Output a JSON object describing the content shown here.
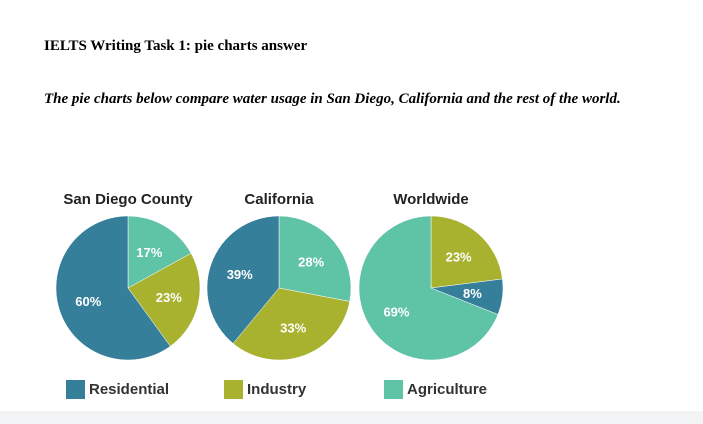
{
  "page": {
    "heading": "IELTS Writing Task 1: pie charts answer",
    "prompt": "The pie charts below compare water usage in San Diego, California and the rest of the world."
  },
  "colors": {
    "Residential": "#367f9a",
    "Industry": "#a8b22f",
    "Agriculture": "#5fc4a6",
    "label_text": "#ffffff",
    "title_text": "#222222"
  },
  "legend": [
    {
      "label": "Residential",
      "color": "#367f9a"
    },
    {
      "label": "Industry",
      "color": "#a8b22f"
    },
    {
      "label": "Agriculture",
      "color": "#5fc4a6"
    }
  ],
  "chart_data": [
    {
      "type": "pie",
      "title": "San Diego County",
      "slices": [
        {
          "category": "Agriculture",
          "value": 17,
          "label": "17%"
        },
        {
          "category": "Industry",
          "value": 23,
          "label": "23%"
        },
        {
          "category": "Residential",
          "value": 60,
          "label": "60%"
        }
      ]
    },
    {
      "type": "pie",
      "title": "California",
      "slices": [
        {
          "category": "Agriculture",
          "value": 28,
          "label": "28%"
        },
        {
          "category": "Industry",
          "value": 33,
          "label": "33%"
        },
        {
          "category": "Residential",
          "value": 39,
          "label": "39%"
        }
      ]
    },
    {
      "type": "pie",
      "title": "Worldwide",
      "slices": [
        {
          "category": "Industry",
          "value": 23,
          "label": "23%"
        },
        {
          "category": "Residential",
          "value": 8,
          "label": "8%"
        },
        {
          "category": "Agriculture",
          "value": 69,
          "label": "69%"
        }
      ]
    }
  ]
}
